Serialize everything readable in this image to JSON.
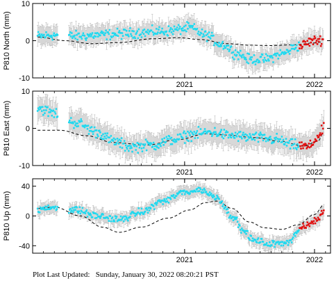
{
  "chart_data": [
    {
      "type": "scatter",
      "station": "P810",
      "component": "North",
      "ylabel": "P810 North (mm)",
      "ylim": [
        -10,
        10
      ],
      "yticks": [
        -10,
        0,
        10
      ],
      "x_tick_labels": [
        {
          "date": "2021-01-01",
          "label": "2021",
          "show_label": true
        },
        {
          "date": "2022-01-01",
          "label": "2022",
          "show_label": true
        }
      ],
      "xlim": [
        "2019-11-01",
        "2022-02-15"
      ],
      "anchors_data": [
        [
          "2019-11-15",
          1.2
        ],
        [
          "2020-01-01",
          1.5
        ],
        [
          "2020-03-01",
          1.2
        ],
        [
          "2020-05-01",
          1.5
        ],
        [
          "2020-07-01",
          1.8
        ],
        [
          "2020-09-01",
          2.2
        ],
        [
          "2020-11-01",
          2.5
        ],
        [
          "2020-12-15",
          3.0
        ],
        [
          "2021-01-15",
          3.5
        ],
        [
          "2021-03-01",
          1.5
        ],
        [
          "2021-04-15",
          -1.0
        ],
        [
          "2021-06-01",
          -3.5
        ],
        [
          "2021-07-01",
          -5.0
        ],
        [
          "2021-08-15",
          -5.0
        ],
        [
          "2021-10-01",
          -3.5
        ],
        [
          "2021-11-15",
          -1.5
        ],
        [
          "2022-01-01",
          0.0
        ],
        [
          "2022-01-25",
          0.3
        ]
      ],
      "anchors_model": [
        [
          "2019-11-15",
          1.0
        ],
        [
          "2020-02-01",
          0.0
        ],
        [
          "2020-04-15",
          -0.8
        ],
        [
          "2020-07-01",
          -0.5
        ],
        [
          "2020-10-01",
          0.5
        ],
        [
          "2020-12-15",
          0.8
        ],
        [
          "2021-02-15",
          0.3
        ],
        [
          "2021-05-01",
          -0.8
        ],
        [
          "2021-07-01",
          -1.2
        ],
        [
          "2021-09-01",
          -1.3
        ],
        [
          "2021-11-01",
          -1.1
        ],
        [
          "2022-01-01",
          -0.6
        ],
        [
          "2022-01-25",
          -0.3
        ]
      ],
      "errorbar_halfwidth": 2.5,
      "recent_start": "2021-11-20",
      "gap": [
        "2020-01-10",
        "2020-02-10"
      ],
      "spread": 1.2
    },
    {
      "type": "scatter",
      "station": "P810",
      "component": "East",
      "ylabel": "P810 East (mm)",
      "ylim": [
        -10,
        10
      ],
      "yticks": [
        -10,
        0,
        10
      ],
      "x_tick_labels": [
        {
          "date": "2021-01-01",
          "label": "2021",
          "show_label": true
        },
        {
          "date": "2022-01-01",
          "label": "2022",
          "show_label": true
        }
      ],
      "xlim": [
        "2019-11-01",
        "2022-02-15"
      ],
      "anchors_data": [
        [
          "2019-11-15",
          5.5
        ],
        [
          "2020-01-01",
          4.0
        ],
        [
          "2020-03-01",
          1.5
        ],
        [
          "2020-05-01",
          -1.0
        ],
        [
          "2020-06-15",
          -3.5
        ],
        [
          "2020-08-01",
          -5.0
        ],
        [
          "2020-10-01",
          -4.5
        ],
        [
          "2020-12-01",
          -3.0
        ],
        [
          "2021-02-01",
          -1.5
        ],
        [
          "2021-03-15",
          -1.0
        ],
        [
          "2021-05-15",
          -2.0
        ],
        [
          "2021-07-15",
          -2.5
        ],
        [
          "2021-09-15",
          -3.0
        ],
        [
          "2021-11-01",
          -4.5
        ],
        [
          "2021-12-15",
          -5.0
        ],
        [
          "2022-01-15",
          -2.0
        ],
        [
          "2022-01-28",
          0.2
        ]
      ],
      "anchors_model": [
        [
          "2019-11-15",
          -0.5
        ],
        [
          "2020-01-15",
          -0.5
        ],
        [
          "2020-04-01",
          -2.0
        ],
        [
          "2020-06-15",
          -3.8
        ],
        [
          "2020-09-15",
          -4.5
        ],
        [
          "2020-12-15",
          -3.0
        ],
        [
          "2021-03-01",
          -1.5
        ],
        [
          "2021-05-01",
          -1.8
        ],
        [
          "2021-07-15",
          -2.5
        ],
        [
          "2021-10-01",
          -3.5
        ],
        [
          "2021-12-01",
          -4.8
        ],
        [
          "2022-01-10",
          -3.5
        ],
        [
          "2022-01-28",
          -1.0
        ]
      ],
      "errorbar_halfwidth": 3.0,
      "recent_start": "2021-11-20",
      "gap": [
        "2020-01-10",
        "2020-02-10"
      ],
      "spread": 1.3
    },
    {
      "type": "scatter",
      "station": "P810",
      "component": "Up",
      "ylabel": "P810 Up (mm)",
      "ylim": [
        -50,
        50
      ],
      "yticks": [
        -40,
        0,
        40
      ],
      "x_tick_labels": [
        {
          "date": "2021-01-01",
          "label": "2021",
          "show_label": true
        },
        {
          "date": "2022-01-01",
          "label": "2022",
          "show_label": true
        }
      ],
      "xlim": [
        "2019-11-01",
        "2022-02-15"
      ],
      "anchors_data": [
        [
          "2019-11-15",
          8
        ],
        [
          "2020-01-01",
          12
        ],
        [
          "2020-03-01",
          8
        ],
        [
          "2020-05-01",
          0
        ],
        [
          "2020-07-01",
          -5
        ],
        [
          "2020-09-01",
          5
        ],
        [
          "2020-11-01",
          20
        ],
        [
          "2021-01-01",
          32
        ],
        [
          "2021-02-15",
          35
        ],
        [
          "2021-04-01",
          25
        ],
        [
          "2021-05-15",
          0
        ],
        [
          "2021-06-15",
          -20
        ],
        [
          "2021-07-15",
          -33
        ],
        [
          "2021-09-01",
          -38
        ],
        [
          "2021-10-15",
          -35
        ],
        [
          "2021-12-01",
          -15
        ],
        [
          "2022-01-10",
          -5
        ],
        [
          "2022-01-28",
          8
        ]
      ],
      "anchors_model": [
        [
          "2019-11-15",
          10
        ],
        [
          "2020-01-01",
          12
        ],
        [
          "2020-03-15",
          0
        ],
        [
          "2020-05-15",
          -15
        ],
        [
          "2020-07-01",
          -22
        ],
        [
          "2020-09-01",
          -15
        ],
        [
          "2020-11-15",
          -3
        ],
        [
          "2021-01-15",
          8
        ],
        [
          "2021-03-01",
          18
        ],
        [
          "2021-04-01",
          20
        ],
        [
          "2021-05-15",
          10
        ],
        [
          "2021-07-01",
          -8
        ],
        [
          "2021-08-15",
          -16
        ],
        [
          "2021-10-01",
          -18
        ],
        [
          "2021-11-15",
          -12
        ],
        [
          "2022-01-01",
          2
        ],
        [
          "2022-01-28",
          15
        ]
      ],
      "errorbar_halfwidth": 8,
      "recent_start": "2021-11-20",
      "gap": [
        "2020-01-10",
        "2020-02-10"
      ],
      "spread": 4
    }
  ],
  "colors": {
    "data_point": "#22d8ee",
    "recent_point": "#e01010",
    "errorbar": "#bbbbbb",
    "model_line": "#000000",
    "frame": "#000000"
  },
  "footer": {
    "label": "Plot Last Updated:",
    "value": "Sunday, January 30, 2022 08:20:21 PST"
  }
}
